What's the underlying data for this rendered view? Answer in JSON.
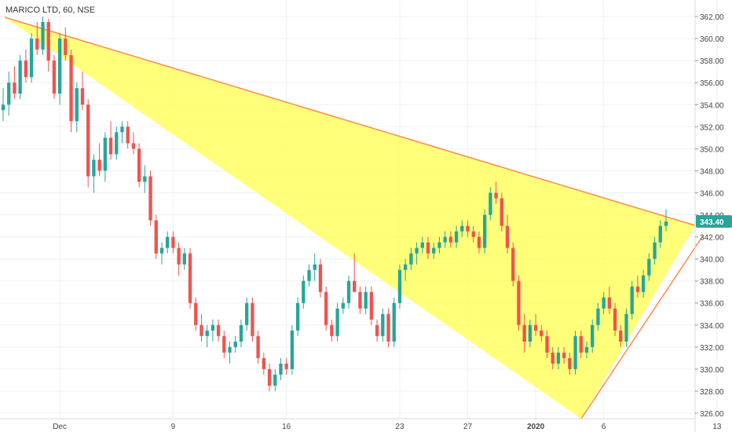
{
  "title": "MARICO LTD, 60, NSE",
  "colors": {
    "up": "#26a69a",
    "down": "#ef5350",
    "triangle_fill": "#ffff4d",
    "triangle_line": "#ff8a4d",
    "grid": "#eef0f3",
    "axis_text": "#444444",
    "price_label_bg": "#26a69a"
  },
  "chart_data": {
    "type": "candlestick",
    "title": "MARICO LTD, 60, NSE",
    "y_range": [
      325.5,
      363.5
    ],
    "y_ticks": [
      "326.00",
      "328.00",
      "330.00",
      "332.00",
      "334.00",
      "336.00",
      "338.00",
      "340.00",
      "342.00",
      "344.00",
      "346.00",
      "348.00",
      "350.00",
      "352.00",
      "354.00",
      "356.00",
      "358.00",
      "360.00",
      "362.00"
    ],
    "x_labels": [
      "Dec",
      "9",
      "16",
      "23",
      "27",
      "2020",
      "6",
      "13"
    ],
    "x_label_bar_index": [
      10,
      30,
      50,
      70,
      82,
      94,
      106,
      126
    ],
    "last_price": "343.40",
    "grid": true,
    "bars": [
      [
        353.5,
        355.5,
        352.5,
        354.0
      ],
      [
        354.0,
        357.0,
        353.0,
        356.0
      ],
      [
        356.0,
        357.5,
        354.5,
        355.0
      ],
      [
        355.0,
        358.5,
        354.5,
        358.0
      ],
      [
        358.0,
        359.0,
        356.0,
        356.5
      ],
      [
        356.5,
        360.5,
        356.0,
        360.0
      ],
      [
        360.0,
        361.5,
        358.5,
        359.0
      ],
      [
        359.0,
        362.0,
        358.5,
        361.5
      ],
      [
        361.5,
        361.8,
        357.0,
        358.0
      ],
      [
        358.0,
        358.5,
        354.5,
        355.0
      ],
      [
        355.0,
        360.5,
        354.0,
        360.0
      ],
      [
        360.0,
        361.0,
        358.0,
        358.5
      ],
      [
        358.5,
        359.0,
        351.5,
        352.5
      ],
      [
        352.5,
        356.0,
        351.5,
        355.5
      ],
      [
        355.5,
        357.0,
        353.5,
        354.0
      ],
      [
        354.0,
        354.5,
        346.5,
        347.5
      ],
      [
        347.5,
        349.5,
        346.0,
        349.0
      ],
      [
        349.0,
        350.5,
        347.5,
        348.0
      ],
      [
        348.0,
        351.5,
        347.0,
        351.0
      ],
      [
        351.0,
        352.5,
        349.0,
        349.5
      ],
      [
        349.5,
        352.0,
        349.0,
        351.5
      ],
      [
        351.5,
        352.5,
        350.5,
        352.0
      ],
      [
        352.0,
        352.5,
        350.0,
        350.5
      ],
      [
        350.5,
        351.5,
        349.5,
        350.0
      ],
      [
        350.0,
        350.5,
        346.5,
        347.0
      ],
      [
        347.0,
        348.5,
        346.0,
        347.5
      ],
      [
        347.5,
        348.0,
        343.0,
        343.5
      ],
      [
        343.5,
        344.0,
        340.0,
        340.5
      ],
      [
        340.5,
        341.5,
        339.5,
        341.0
      ],
      [
        341.0,
        342.5,
        340.5,
        342.0
      ],
      [
        342.0,
        342.5,
        340.5,
        341.0
      ],
      [
        341.0,
        341.5,
        338.5,
        339.5
      ],
      [
        339.5,
        341.0,
        339.0,
        340.5
      ],
      [
        340.5,
        341.0,
        335.5,
        336.0
      ],
      [
        336.0,
        336.5,
        333.5,
        334.0
      ],
      [
        334.0,
        335.0,
        332.5,
        333.0
      ],
      [
        333.0,
        334.0,
        332.0,
        333.5
      ],
      [
        333.5,
        334.5,
        332.5,
        334.0
      ],
      [
        334.0,
        334.5,
        332.5,
        333.0
      ],
      [
        333.0,
        333.5,
        331.0,
        331.5
      ],
      [
        331.5,
        332.5,
        330.5,
        332.0
      ],
      [
        332.0,
        333.0,
        331.5,
        332.5
      ],
      [
        332.5,
        334.5,
        332.0,
        334.0
      ],
      [
        334.0,
        336.5,
        333.5,
        336.0
      ],
      [
        336.0,
        336.5,
        332.5,
        333.0
      ],
      [
        333.0,
        333.5,
        330.5,
        331.0
      ],
      [
        331.0,
        331.5,
        329.5,
        330.0
      ],
      [
        330.0,
        330.5,
        328.0,
        328.5
      ],
      [
        328.5,
        330.0,
        328.0,
        329.5
      ],
      [
        329.5,
        331.0,
        329.0,
        330.5
      ],
      [
        330.5,
        331.0,
        329.5,
        330.0
      ],
      [
        330.0,
        334.0,
        329.5,
        333.5
      ],
      [
        333.5,
        336.5,
        333.0,
        336.0
      ],
      [
        336.0,
        338.5,
        335.5,
        338.0
      ],
      [
        338.0,
        339.5,
        337.5,
        339.0
      ],
      [
        339.0,
        340.5,
        338.0,
        339.5
      ],
      [
        339.5,
        340.0,
        336.5,
        337.0
      ],
      [
        337.0,
        337.5,
        333.5,
        334.0
      ],
      [
        334.0,
        334.5,
        332.5,
        333.0
      ],
      [
        333.0,
        336.0,
        332.5,
        335.5
      ],
      [
        335.5,
        336.5,
        335.0,
        336.0
      ],
      [
        336.0,
        338.5,
        335.5,
        338.0
      ],
      [
        338.0,
        340.5,
        337.5,
        337.0
      ],
      [
        337.0,
        337.5,
        335.0,
        335.5
      ],
      [
        335.5,
        337.5,
        335.0,
        337.0
      ],
      [
        337.0,
        337.5,
        334.0,
        334.5
      ],
      [
        334.0,
        334.5,
        332.5,
        333.0
      ],
      [
        333.0,
        335.5,
        332.5,
        335.0
      ],
      [
        335.0,
        335.5,
        332.0,
        332.5
      ],
      [
        332.5,
        336.5,
        332.0,
        336.0
      ],
      [
        336.0,
        339.5,
        335.5,
        339.0
      ],
      [
        339.0,
        340.0,
        338.0,
        339.5
      ],
      [
        339.5,
        341.0,
        339.0,
        340.5
      ],
      [
        340.5,
        341.5,
        339.5,
        341.0
      ],
      [
        341.0,
        342.0,
        340.5,
        341.5
      ],
      [
        341.5,
        342.0,
        340.0,
        340.5
      ],
      [
        340.5,
        341.5,
        340.0,
        341.0
      ],
      [
        341.0,
        342.0,
        340.5,
        341.5
      ],
      [
        341.5,
        342.5,
        341.0,
        342.0
      ],
      [
        342.0,
        342.5,
        341.0,
        341.5
      ],
      [
        341.5,
        343.0,
        341.0,
        342.5
      ],
      [
        342.5,
        343.5,
        342.0,
        343.0
      ],
      [
        343.0,
        343.5,
        342.0,
        342.5
      ],
      [
        342.5,
        343.0,
        341.5,
        342.0
      ],
      [
        342.0,
        342.5,
        340.5,
        341.0
      ],
      [
        341.0,
        344.5,
        340.5,
        344.0
      ],
      [
        344.0,
        346.5,
        343.5,
        346.0
      ],
      [
        346.0,
        347.0,
        345.0,
        345.5
      ],
      [
        345.5,
        346.0,
        342.5,
        343.0
      ],
      [
        343.0,
        344.0,
        340.5,
        341.0
      ],
      [
        341.0,
        341.5,
        337.5,
        338.0
      ],
      [
        338.0,
        338.5,
        333.5,
        334.0
      ],
      [
        334.0,
        335.0,
        331.5,
        332.5
      ],
      [
        332.5,
        334.5,
        332.0,
        334.0
      ],
      [
        334.0,
        335.0,
        333.0,
        333.5
      ],
      [
        333.5,
        334.0,
        332.5,
        333.0
      ],
      [
        333.0,
        333.5,
        331.0,
        331.5
      ],
      [
        331.5,
        332.0,
        330.0,
        330.5
      ],
      [
        330.5,
        332.0,
        330.0,
        331.5
      ],
      [
        331.5,
        332.0,
        330.5,
        331.0
      ],
      [
        331.0,
        331.5,
        329.5,
        330.0
      ],
      [
        330.0,
        333.5,
        329.5,
        333.0
      ],
      [
        333.0,
        333.5,
        331.0,
        331.5
      ],
      [
        331.5,
        332.5,
        331.0,
        332.0
      ],
      [
        332.0,
        334.5,
        331.5,
        334.0
      ],
      [
        334.0,
        336.0,
        333.5,
        335.5
      ],
      [
        335.5,
        337.0,
        335.0,
        336.5
      ],
      [
        336.5,
        337.5,
        335.0,
        335.5
      ],
      [
        335.5,
        336.0,
        333.0,
        333.5
      ],
      [
        333.5,
        334.0,
        332.0,
        332.5
      ],
      [
        332.5,
        335.5,
        332.0,
        335.0
      ],
      [
        335.0,
        338.0,
        334.5,
        337.5
      ],
      [
        337.5,
        338.5,
        336.5,
        337.0
      ],
      [
        337.0,
        339.0,
        336.5,
        338.5
      ],
      [
        338.5,
        340.5,
        338.0,
        340.0
      ],
      [
        340.0,
        342.0,
        339.5,
        341.5
      ],
      [
        341.5,
        343.5,
        341.0,
        343.0
      ],
      [
        343.0,
        344.5,
        342.5,
        343.4
      ]
    ]
  }
}
